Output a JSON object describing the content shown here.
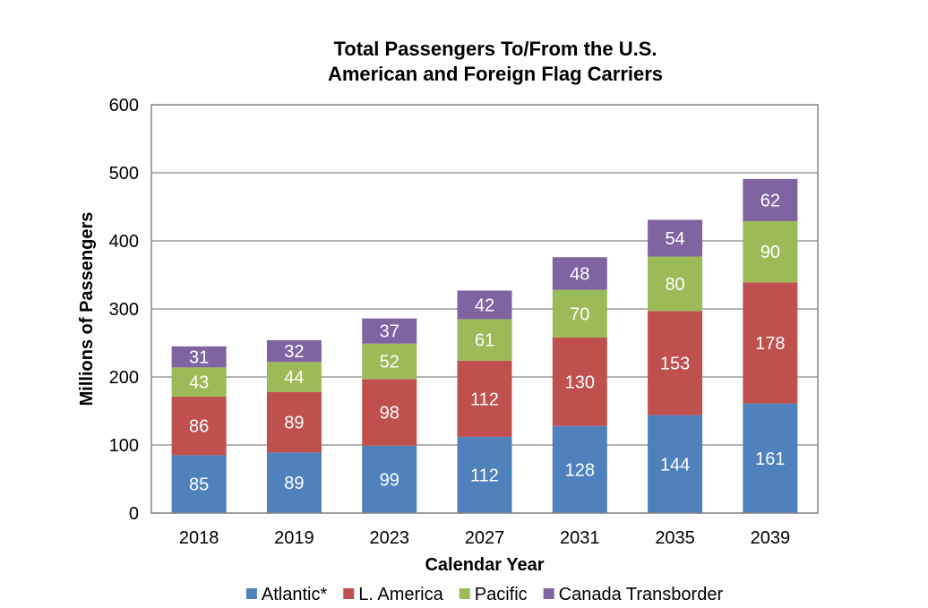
{
  "chart_data": {
    "type": "bar",
    "stacked": true,
    "title_lines": [
      "Total Passengers To/From the U.S.",
      "American and Foreign Flag Carriers"
    ],
    "xlabel": "Calendar Year",
    "ylabel": "Millions of Passengers",
    "ylim": [
      0,
      600
    ],
    "yticks": [
      "0",
      "100",
      "200",
      "300",
      "400",
      "500",
      "600"
    ],
    "grid": true,
    "legend_position": "bottom",
    "categories": [
      "2018",
      "2019",
      "2023",
      "2027",
      "2031",
      "2035",
      "2039"
    ],
    "series": [
      {
        "name": "Atlantic*",
        "color": "#4F81BD",
        "values": [
          85,
          89,
          99,
          112,
          128,
          144,
          161
        ]
      },
      {
        "name": "L. America",
        "color": "#C0504D",
        "values": [
          86,
          89,
          98,
          112,
          130,
          153,
          178
        ]
      },
      {
        "name": "Pacific",
        "color": "#9BBB59",
        "values": [
          43,
          44,
          52,
          61,
          70,
          80,
          90
        ]
      },
      {
        "name": "Canada Transborder",
        "color": "#8064A2",
        "values": [
          31,
          32,
          37,
          42,
          48,
          54,
          62
        ]
      }
    ]
  }
}
